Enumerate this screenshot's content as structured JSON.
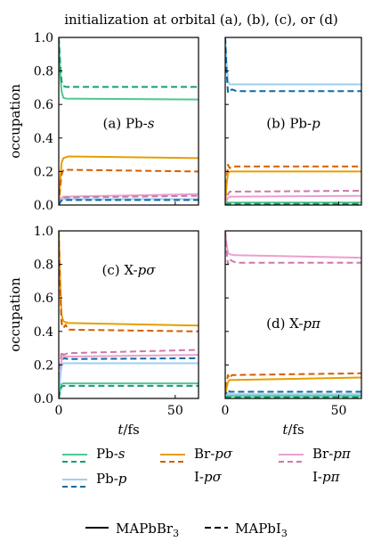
{
  "figure_title": "initialization at orbital (a), (b), (c), or (d)",
  "colors": {
    "Pb-s": "#4ec990",
    "Pb-p": "#9ecfee",
    "X-sigma": "#e69f00",
    "X-pi": "#e8a1cf",
    "Pb-s_I3": "#169e6a",
    "Pb-p_I3": "#0e6aa0",
    "X-sigma_I3": "#d55e00",
    "X-pi_I3": "#cc79a7"
  },
  "legend": {
    "orbitals": [
      {
        "solid_label": "Pb-s",
        "dashed_label": "Pb-s",
        "solid_color": "#4ec990",
        "dashed_color": "#169e6a"
      },
      {
        "solid_label": "Pb-p",
        "dashed_label": "Pb-p",
        "solid_color": "#9ecfee",
        "dashed_color": "#0e6aa0"
      },
      {
        "solid_label": "Br-pσ",
        "dashed_label": "I-pσ",
        "solid_color": "#e69f00",
        "dashed_color": "#d55e00"
      },
      {
        "solid_label": "Br-pπ",
        "dashed_label": "I-pπ",
        "solid_color": "#e8a1cf",
        "dashed_color": "#cc79a7"
      }
    ],
    "materials": [
      {
        "label": "MAPbBr3",
        "style": "solid"
      },
      {
        "label": "MAPbI3",
        "style": "dashed"
      }
    ]
  },
  "chart_data": [
    {
      "type": "line",
      "panel": "a",
      "label": "(a) Pb-s",
      "xlim": [
        0,
        60
      ],
      "ylim": [
        0,
        1.0
      ],
      "xticks": [
        0,
        50
      ],
      "yticks": [
        "0.0",
        "0.2",
        "0.4",
        "0.6",
        "0.8",
        "1.0"
      ],
      "xlabel": "",
      "ylabel": "occupation",
      "series": [
        {
          "name": "Pb-s",
          "material": "MAPbBr3",
          "color": "#4ec990",
          "dash": false,
          "x": [
            0,
            0.6,
            1.2,
            2,
            3,
            60
          ],
          "y": [
            1.0,
            0.8,
            0.68,
            0.64,
            0.635,
            0.63
          ]
        },
        {
          "name": "Pb-s",
          "material": "MAPbI3",
          "color": "#169e6a",
          "dash": true,
          "x": [
            0,
            0.6,
            1.2,
            2,
            3,
            60
          ],
          "y": [
            1.0,
            0.85,
            0.74,
            0.71,
            0.705,
            0.705
          ]
        },
        {
          "name": "Br-pσ",
          "material": "MAPbBr3",
          "color": "#e69f00",
          "dash": false,
          "x": [
            0,
            0.6,
            1.2,
            2,
            4,
            60
          ],
          "y": [
            0.0,
            0.14,
            0.25,
            0.28,
            0.29,
            0.28
          ]
        },
        {
          "name": "I-pσ",
          "material": "MAPbI3",
          "color": "#d55e00",
          "dash": true,
          "x": [
            0,
            0.6,
            1.2,
            2,
            4,
            60
          ],
          "y": [
            0.0,
            0.1,
            0.18,
            0.21,
            0.21,
            0.2
          ]
        },
        {
          "name": "Br-pπ",
          "material": "MAPbBr3",
          "color": "#e8a1cf",
          "dash": false,
          "x": [
            0,
            1,
            2,
            60
          ],
          "y": [
            0.0,
            0.04,
            0.05,
            0.065
          ]
        },
        {
          "name": "I-pπ",
          "material": "MAPbI3",
          "color": "#cc79a7",
          "dash": true,
          "x": [
            0,
            1,
            2,
            60
          ],
          "y": [
            0.0,
            0.04,
            0.045,
            0.055
          ]
        },
        {
          "name": "Pb-p",
          "material": "MAPbBr3",
          "color": "#9ecfee",
          "dash": false,
          "x": [
            0,
            1,
            2,
            60
          ],
          "y": [
            0.0,
            0.03,
            0.035,
            0.035
          ]
        },
        {
          "name": "Pb-p",
          "material": "MAPbI3",
          "color": "#0e6aa0",
          "dash": true,
          "x": [
            0,
            1,
            2,
            60
          ],
          "y": [
            0.0,
            0.025,
            0.03,
            0.03
          ]
        }
      ]
    },
    {
      "type": "line",
      "panel": "b",
      "label": "(b) Pb-p",
      "xlim": [
        0,
        60
      ],
      "ylim": [
        0,
        1.0
      ],
      "xticks": [
        0,
        50
      ],
      "yticks": [],
      "xlabel": "",
      "ylabel": "",
      "series": [
        {
          "name": "Pb-p",
          "material": "MAPbBr3",
          "color": "#9ecfee",
          "dash": false,
          "x": [
            0,
            0.6,
            1.2,
            2,
            3,
            60
          ],
          "y": [
            1.0,
            0.85,
            0.74,
            0.72,
            0.72,
            0.72
          ]
        },
        {
          "name": "Pb-p",
          "material": "MAPbI3",
          "color": "#0e6aa0",
          "dash": true,
          "x": [
            0,
            0.6,
            1.2,
            2,
            3,
            5,
            60
          ],
          "y": [
            1.0,
            0.8,
            0.67,
            0.68,
            0.69,
            0.68,
            0.68
          ]
        },
        {
          "name": "I-pσ",
          "material": "MAPbI3",
          "color": "#d55e00",
          "dash": true,
          "x": [
            0,
            0.6,
            1.2,
            2,
            3,
            5,
            60
          ],
          "y": [
            0.0,
            0.14,
            0.24,
            0.22,
            0.23,
            0.23,
            0.23
          ]
        },
        {
          "name": "Br-pσ",
          "material": "MAPbBr3",
          "color": "#e69f00",
          "dash": false,
          "x": [
            0,
            0.6,
            1.2,
            2,
            4,
            60
          ],
          "y": [
            0.0,
            0.12,
            0.19,
            0.2,
            0.2,
            0.2
          ]
        },
        {
          "name": "I-pπ",
          "material": "MAPbI3",
          "color": "#cc79a7",
          "dash": true,
          "x": [
            0,
            1,
            2,
            60
          ],
          "y": [
            0.0,
            0.06,
            0.08,
            0.085
          ]
        },
        {
          "name": "Br-pπ",
          "material": "MAPbBr3",
          "color": "#e8a1cf",
          "dash": false,
          "x": [
            0,
            1,
            2,
            60
          ],
          "y": [
            0.0,
            0.04,
            0.05,
            0.055
          ]
        },
        {
          "name": "Pb-s",
          "material": "MAPbBr3",
          "color": "#4ec990",
          "dash": false,
          "x": [
            0,
            1,
            60
          ],
          "y": [
            0.0,
            0.015,
            0.015
          ]
        },
        {
          "name": "Pb-s",
          "material": "MAPbI3",
          "color": "#169e6a",
          "dash": true,
          "x": [
            0,
            1,
            60
          ],
          "y": [
            0.0,
            0.008,
            0.008
          ]
        }
      ]
    },
    {
      "type": "line",
      "panel": "c",
      "label": "(c) X-pσ",
      "xlim": [
        0,
        60
      ],
      "ylim": [
        0,
        1.0
      ],
      "xticks": [
        0,
        50
      ],
      "yticks": [
        "0.0",
        "0.2",
        "0.4",
        "0.6",
        "0.8",
        "1.0"
      ],
      "xlabel": "t/fs",
      "ylabel": "occupation",
      "series": [
        {
          "name": "Br-pσ",
          "material": "MAPbBr3",
          "color": "#e69f00",
          "dash": false,
          "x": [
            0,
            0.6,
            1.2,
            2,
            4,
            60
          ],
          "y": [
            1.0,
            0.7,
            0.5,
            0.46,
            0.45,
            0.435
          ]
        },
        {
          "name": "I-pσ",
          "material": "MAPbI3",
          "color": "#d55e00",
          "dash": true,
          "x": [
            0,
            0.6,
            1.2,
            2,
            3,
            4,
            6,
            60
          ],
          "y": [
            1.0,
            0.65,
            0.45,
            0.42,
            0.44,
            0.41,
            0.41,
            0.4
          ]
        },
        {
          "name": "I-pπ",
          "material": "MAPbI3",
          "color": "#cc79a7",
          "dash": true,
          "x": [
            0,
            0.6,
            1.2,
            2,
            4,
            60
          ],
          "y": [
            0.0,
            0.18,
            0.28,
            0.26,
            0.27,
            0.29
          ]
        },
        {
          "name": "Pb-p",
          "material": "MAPbI3",
          "color": "#0e6aa0",
          "dash": true,
          "x": [
            0,
            0.6,
            1.2,
            2,
            4,
            60
          ],
          "y": [
            0.0,
            0.14,
            0.22,
            0.24,
            0.235,
            0.24
          ]
        },
        {
          "name": "Br-pπ",
          "material": "MAPbBr3",
          "color": "#e8a1cf",
          "dash": false,
          "x": [
            0,
            0.6,
            1.2,
            2,
            4,
            60
          ],
          "y": [
            0.0,
            0.14,
            0.23,
            0.25,
            0.25,
            0.26
          ]
        },
        {
          "name": "Pb-p",
          "material": "MAPbBr3",
          "color": "#9ecfee",
          "dash": false,
          "x": [
            0,
            0.6,
            1.2,
            2,
            4,
            60
          ],
          "y": [
            0.0,
            0.12,
            0.19,
            0.21,
            0.21,
            0.21
          ]
        },
        {
          "name": "Pb-s",
          "material": "MAPbBr3",
          "color": "#4ec990",
          "dash": false,
          "x": [
            0,
            0.6,
            1.2,
            2,
            60
          ],
          "y": [
            0.0,
            0.05,
            0.085,
            0.09,
            0.09
          ]
        },
        {
          "name": "Pb-s",
          "material": "MAPbI3",
          "color": "#169e6a",
          "dash": true,
          "x": [
            0,
            0.6,
            1.2,
            2,
            60
          ],
          "y": [
            0.0,
            0.04,
            0.07,
            0.075,
            0.075
          ]
        }
      ]
    },
    {
      "type": "line",
      "panel": "d",
      "label": "(d) X-pπ",
      "xlim": [
        0,
        60
      ],
      "ylim": [
        0,
        1.0
      ],
      "xticks": [
        0,
        50
      ],
      "yticks": [],
      "xlabel": "t/fs",
      "ylabel": "",
      "series": [
        {
          "name": "Br-pπ",
          "material": "MAPbBr3",
          "color": "#e8a1cf",
          "dash": false,
          "x": [
            0,
            0.6,
            1.2,
            2,
            4,
            60
          ],
          "y": [
            1.0,
            0.92,
            0.87,
            0.86,
            0.855,
            0.84
          ]
        },
        {
          "name": "I-pπ",
          "material": "MAPbI3",
          "color": "#cc79a7",
          "dash": true,
          "x": [
            0,
            0.6,
            1.2,
            2,
            3,
            5,
            60
          ],
          "y": [
            1.0,
            0.88,
            0.8,
            0.83,
            0.82,
            0.81,
            0.81
          ]
        },
        {
          "name": "I-pσ",
          "material": "MAPbI3",
          "color": "#d55e00",
          "dash": true,
          "x": [
            0,
            0.6,
            1.2,
            2,
            3,
            5,
            60
          ],
          "y": [
            0.0,
            0.09,
            0.14,
            0.12,
            0.14,
            0.14,
            0.15
          ]
        },
        {
          "name": "Br-pσ",
          "material": "MAPbBr3",
          "color": "#e69f00",
          "dash": false,
          "x": [
            0,
            0.6,
            1.2,
            2,
            4,
            60
          ],
          "y": [
            0.0,
            0.06,
            0.1,
            0.11,
            0.11,
            0.125
          ]
        },
        {
          "name": "Pb-p",
          "material": "MAPbI3",
          "color": "#0e6aa0",
          "dash": true,
          "x": [
            0,
            0.6,
            1.2,
            2,
            60
          ],
          "y": [
            0.0,
            0.03,
            0.05,
            0.04,
            0.04
          ]
        },
        {
          "name": "Pb-p",
          "material": "MAPbBr3",
          "color": "#9ecfee",
          "dash": false,
          "x": [
            0,
            0.6,
            1.2,
            2,
            60
          ],
          "y": [
            0.0,
            0.02,
            0.03,
            0.025,
            0.025
          ]
        },
        {
          "name": "Pb-s",
          "material": "MAPbBr3",
          "color": "#4ec990",
          "dash": false,
          "x": [
            0,
            1,
            60
          ],
          "y": [
            0.0,
            0.015,
            0.015
          ]
        },
        {
          "name": "Pb-s",
          "material": "MAPbI3",
          "color": "#169e6a",
          "dash": true,
          "x": [
            0,
            1,
            60
          ],
          "y": [
            0.0,
            0.008,
            0.008
          ]
        }
      ]
    }
  ]
}
